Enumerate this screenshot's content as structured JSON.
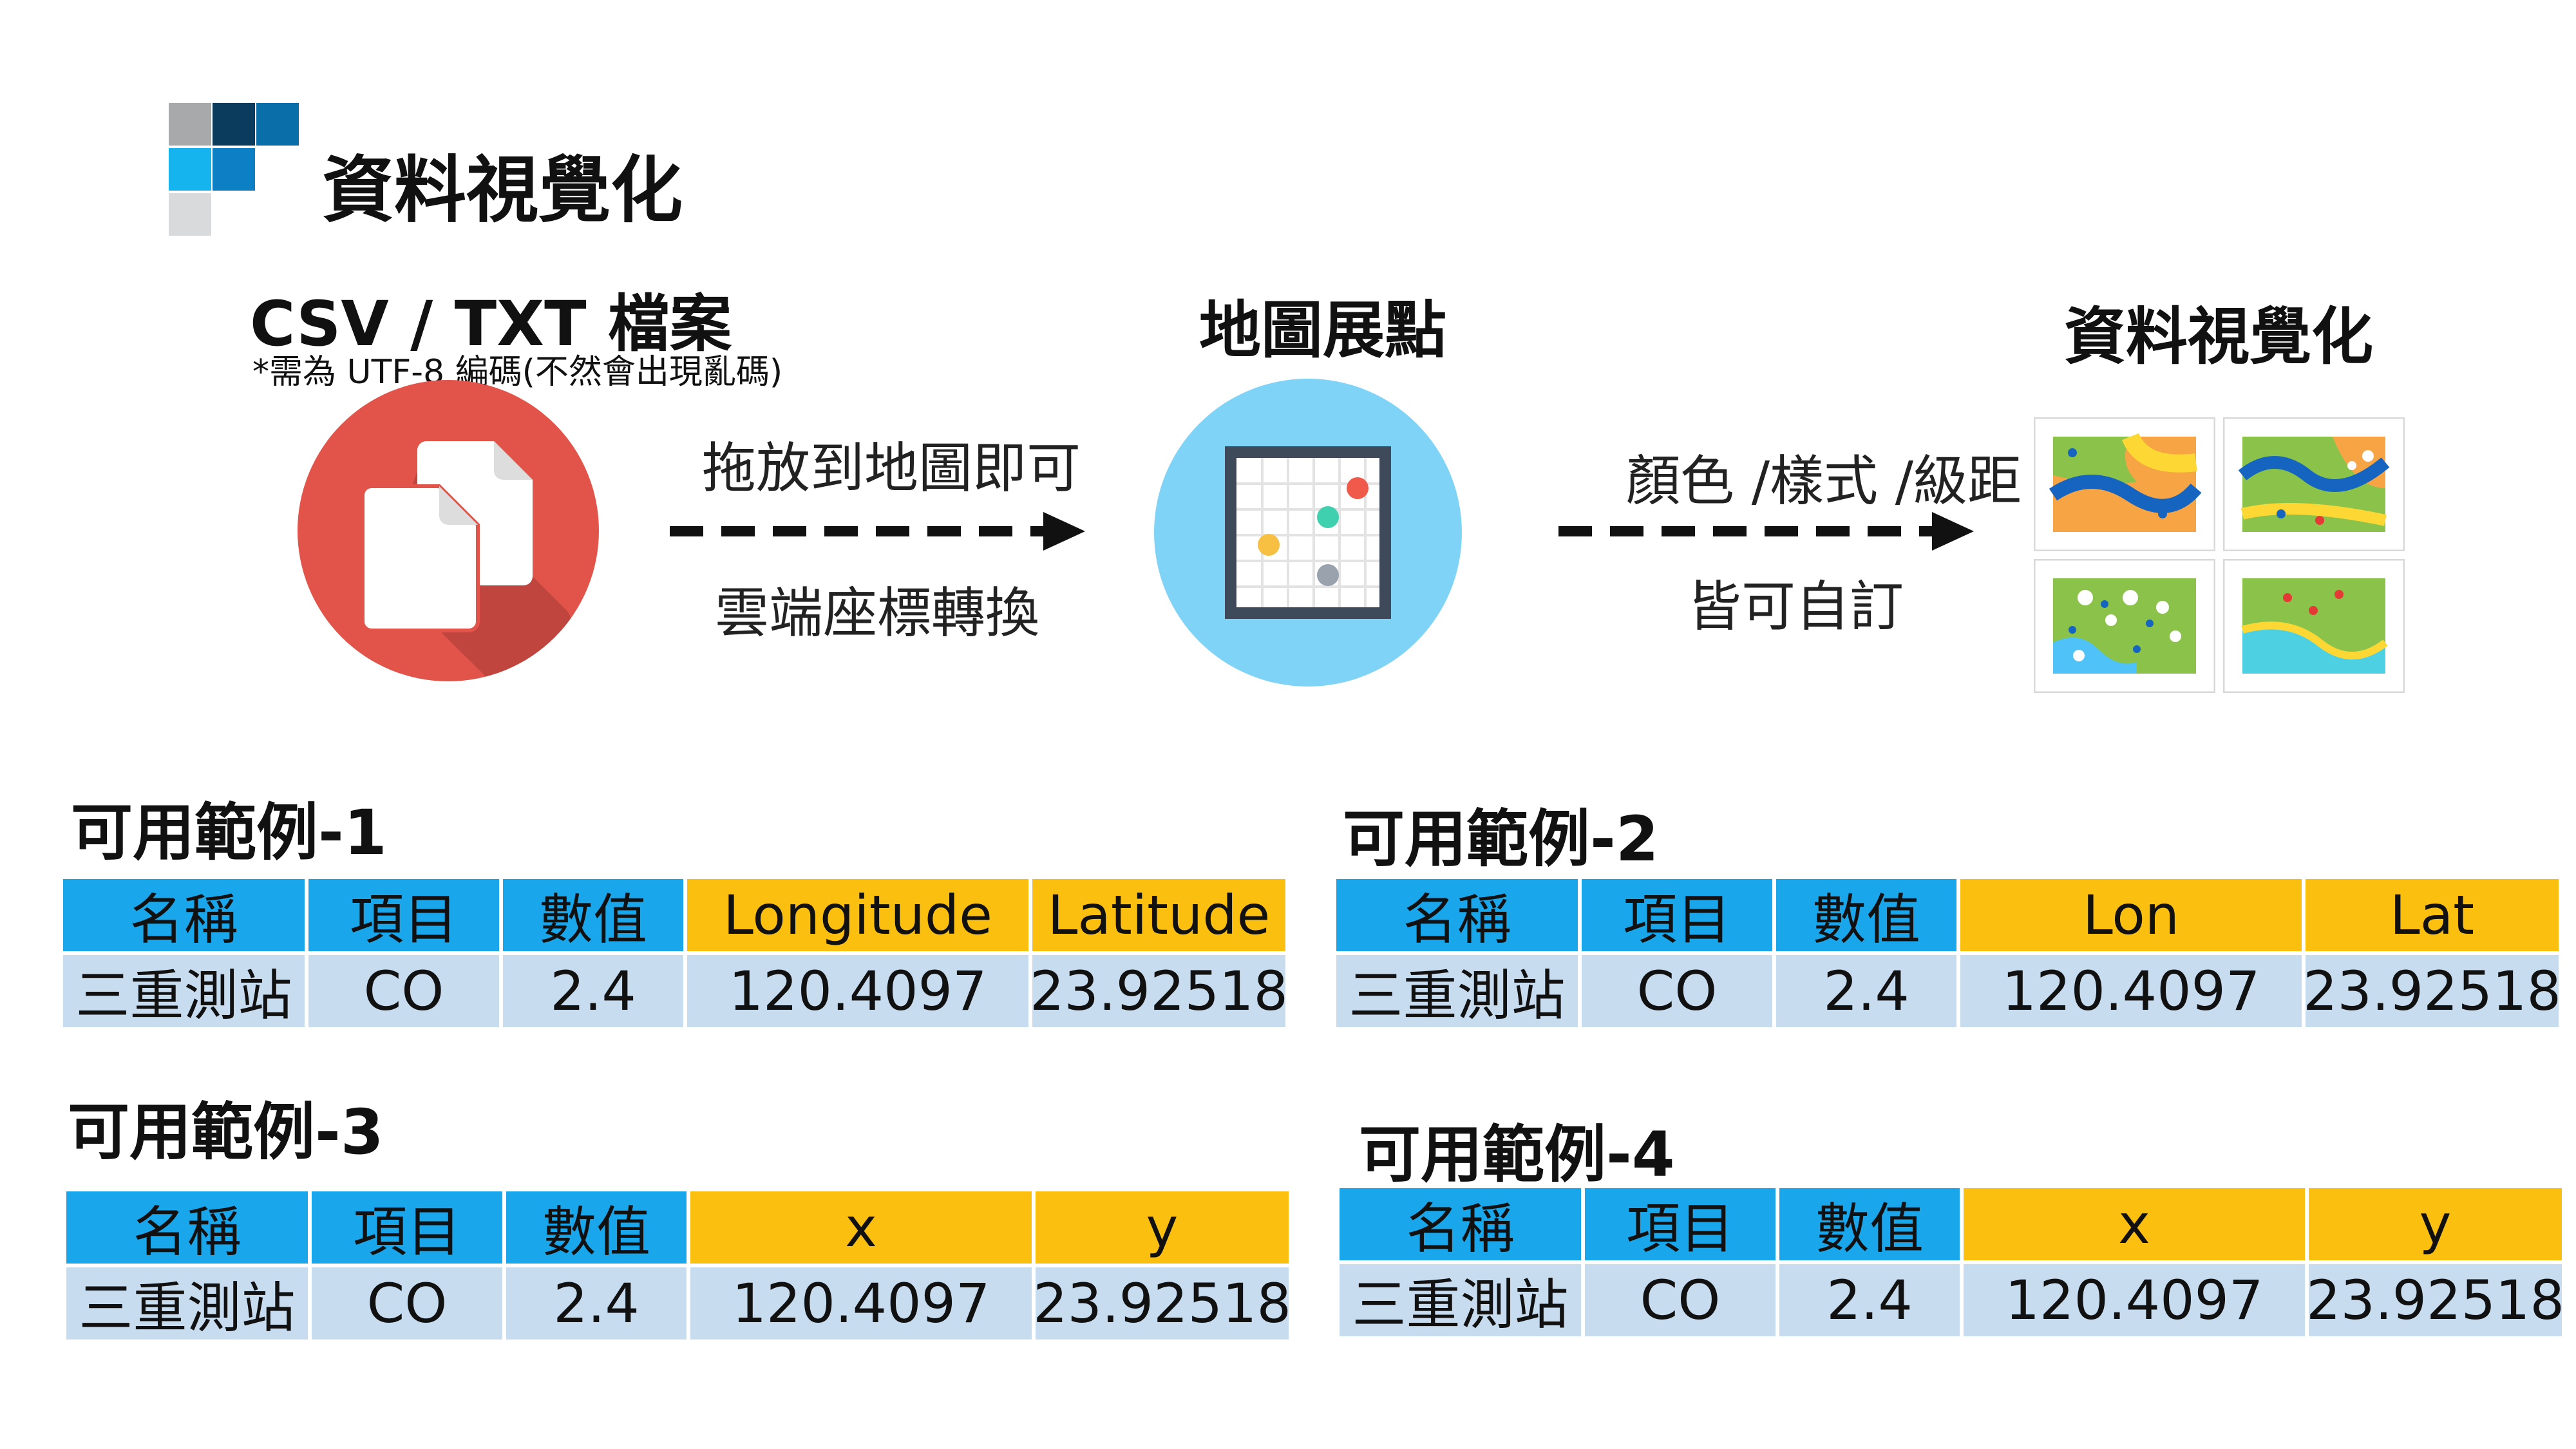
{
  "header": {
    "title": "資料視覺化"
  },
  "flow": {
    "step1": {
      "title": "CSV / TXT 檔案",
      "note": "*需為 UTF-8 編碼(不然會出現亂碼)"
    },
    "step2": {
      "title": "地圖展點"
    },
    "step3": {
      "title": "資料視覺化"
    },
    "arrow1": {
      "top_label": "拖放到地圖即可",
      "bottom_label": "雲端座標轉換"
    },
    "arrow2": {
      "top_label": "顏色 /樣式 /級距",
      "bottom_label": "皆可自訂"
    }
  },
  "examples": [
    {
      "title": "可用範例-1",
      "headers": [
        "名稱",
        "項目",
        "數值",
        "Longitude",
        "Latitude"
      ],
      "row": [
        "三重測站",
        "CO",
        "2.4",
        "120.4097",
        "23.92518"
      ]
    },
    {
      "title": "可用範例-2",
      "headers": [
        "名稱",
        "項目",
        "數值",
        "Lon",
        "Lat"
      ],
      "row": [
        "三重測站",
        "CO",
        "2.4",
        "120.4097",
        "23.92518"
      ]
    },
    {
      "title": "可用範例-3",
      "headers": [
        "名稱",
        "項目",
        "數值",
        "x",
        "y"
      ],
      "row": [
        "三重測站",
        "CO",
        "2.4",
        "120.4097",
        "23.92518"
      ]
    },
    {
      "title": "可用範例-4",
      "headers": [
        "名稱",
        "項目",
        "數值",
        "x",
        "y"
      ],
      "row": [
        "三重測站",
        "CO",
        "2.4",
        "120.4097",
        "23.92518"
      ]
    }
  ],
  "colors": {
    "header_blue": "#1aa6ea",
    "header_gold": "#fbbf0f",
    "data_row": "#c8dcef",
    "file_icon_red": "#e2534a",
    "map_icon_blue": "#7fd3f7"
  },
  "icons": [
    "file-copy-icon",
    "map-plot-icon",
    "map-thumbnail-icon"
  ]
}
